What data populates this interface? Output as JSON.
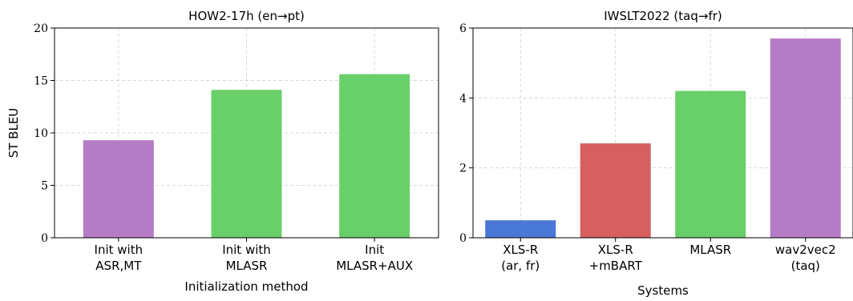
{
  "chart_data": [
    {
      "type": "bar",
      "title": "HOW2-17h (en→pt)",
      "xlabel": "Initialization method",
      "ylabel": "ST BLEU",
      "ylim": [
        0,
        20
      ],
      "yticks": [
        0,
        5,
        10,
        15,
        20
      ],
      "grid": true,
      "categories": [
        [
          "Init with",
          "ASR,MT"
        ],
        [
          "Init with",
          "MLASR"
        ],
        [
          "Init",
          "MLASR+AUX"
        ]
      ],
      "values": [
        9.3,
        14.1,
        15.6
      ],
      "colors": [
        "#b57cc6",
        "#69cf6a",
        "#69cf6a"
      ]
    },
    {
      "type": "bar",
      "title": "IWSLT2022 (taq→fr)",
      "xlabel": "Systems",
      "ylabel": "",
      "ylim": [
        0,
        6
      ],
      "yticks": [
        0,
        2,
        4,
        6
      ],
      "grid": true,
      "categories": [
        [
          "XLS-R",
          "(ar, fr)"
        ],
        [
          "XLS-R",
          "+mBART"
        ],
        [
          "MLASR"
        ],
        [
          "wav2vec2",
          "(taq)"
        ]
      ],
      "values": [
        0.5,
        2.7,
        4.2,
        5.7
      ],
      "colors": [
        "#4a78d6",
        "#d66060",
        "#69cf6a",
        "#b57cc6"
      ]
    }
  ]
}
